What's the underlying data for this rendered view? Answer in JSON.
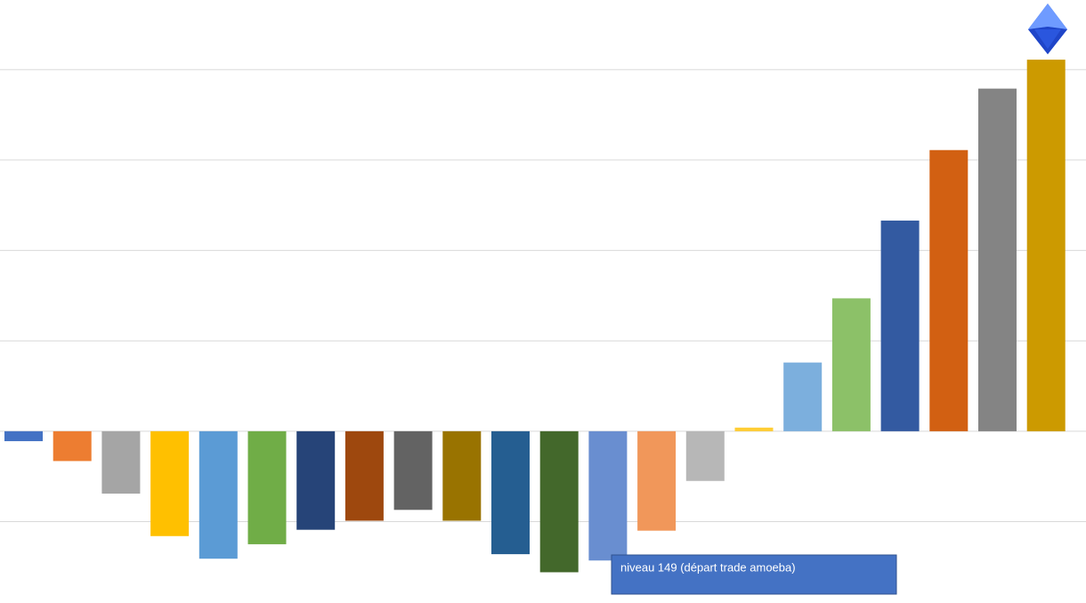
{
  "chart_data": {
    "type": "bar",
    "categories": [
      null,
      null,
      null,
      null,
      null,
      null,
      null,
      null,
      null,
      null,
      null,
      null,
      null,
      null,
      null,
      null,
      null,
      null,
      null,
      null,
      null,
      null
    ],
    "values": [
      -0.11,
      -0.33,
      -0.69,
      -1.16,
      -1.41,
      -1.25,
      -1.09,
      -0.99,
      -0.87,
      -0.99,
      -1.36,
      -1.56,
      -1.43,
      -1.1,
      -0.55,
      0.04,
      0.76,
      1.47,
      2.33,
      3.11,
      3.79,
      4.11
    ],
    "colors": [
      "#4472c4",
      "#ed7d31",
      "#a5a5a5",
      "#ffc000",
      "#5b9bd5",
      "#70ad47",
      "#264478",
      "#9e480e",
      "#636363",
      "#997300",
      "#255e91",
      "#43682b",
      "#698ed0",
      "#f1975a",
      "#b7b7b7",
      "#ffcd33",
      "#7cafdd",
      "#8cc168",
      "#335aa1",
      "#d26012",
      "#848484",
      "#cc9a00"
    ],
    "ylim": [
      -1.9,
      4.77
    ],
    "yticks": [
      -1,
      0,
      1,
      2,
      3,
      4
    ],
    "grid": true,
    "annotation": "niveau 149  (départ trade amoeba)"
  }
}
